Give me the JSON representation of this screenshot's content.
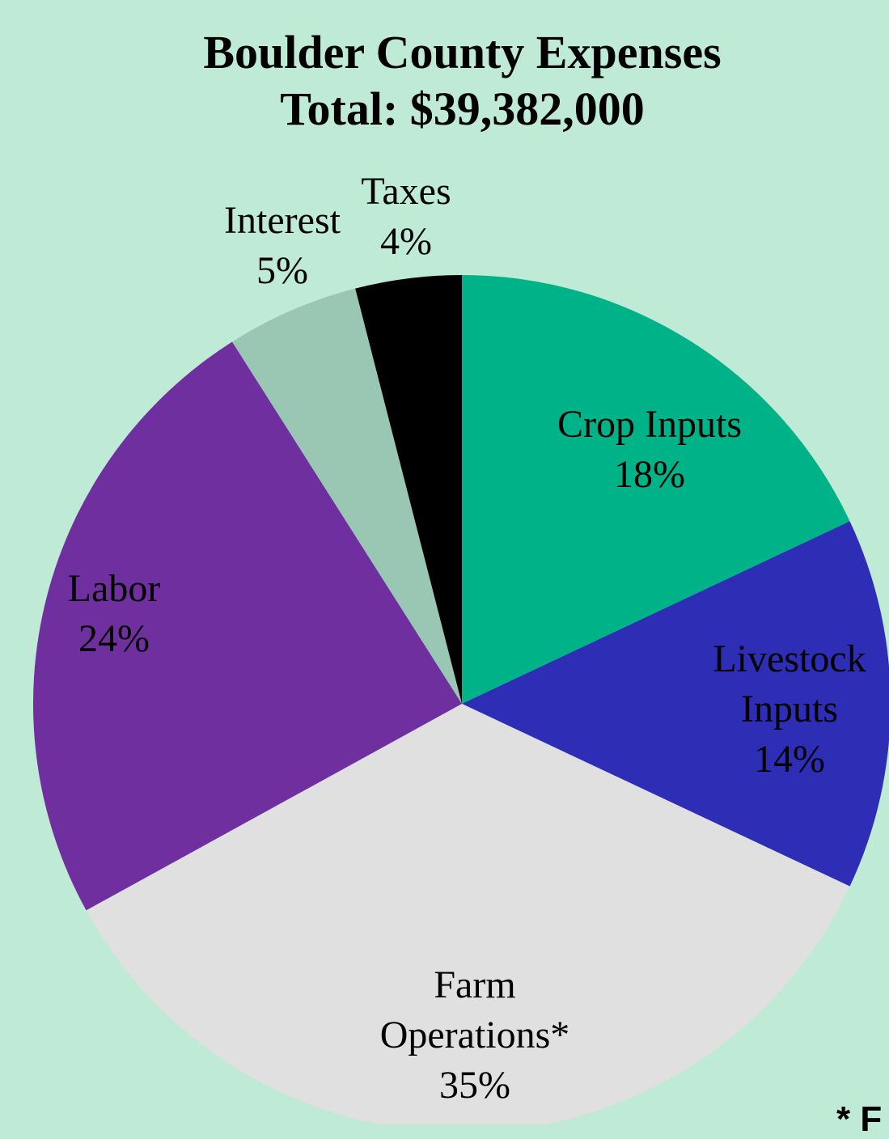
{
  "chart_data": {
    "type": "pie",
    "title": [
      "Boulder County Expenses",
      "Total: $39,382,000"
    ],
    "slices": [
      {
        "name": "Crop Inputs",
        "label_lines": [
          "Crop Inputs",
          "18%"
        ],
        "value": 18,
        "color": "#00b287"
      },
      {
        "name": "Livestock Inputs",
        "label_lines": [
          "Livestock",
          "Inputs",
          "14%"
        ],
        "value": 14,
        "color": "#2d2db5"
      },
      {
        "name": "Farm Operations*",
        "label_lines": [
          "Farm",
          "Operations*",
          "35%"
        ],
        "value": 35,
        "color": "#e0e0e0"
      },
      {
        "name": "Labor",
        "label_lines": [
          "Labor",
          "24%"
        ],
        "value": 24,
        "color": "#6f2f9f"
      },
      {
        "name": "Interest",
        "label_lines": [
          "Interest",
          "5%"
        ],
        "value": 5,
        "color": "#99c7b4"
      },
      {
        "name": "Taxes",
        "label_lines": [
          "Taxes",
          "4%"
        ],
        "value": 4,
        "color": "#000000"
      }
    ],
    "start_angle": "12 o'clock",
    "direction": "clockwise",
    "legend": "none"
  },
  "footnote_marker": "* F",
  "colors": {
    "background": "#bfead5"
  }
}
